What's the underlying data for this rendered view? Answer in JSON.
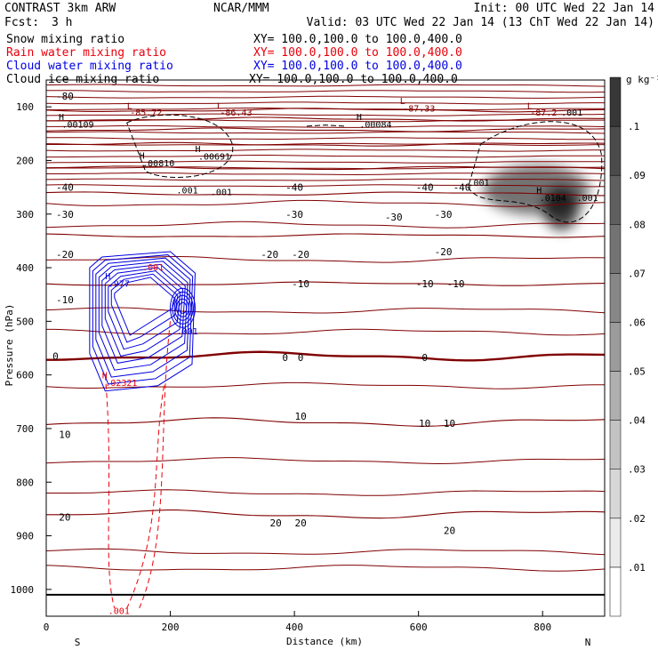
{
  "header": {
    "model": "CONTRAST  3km ARW",
    "org": "NCAR/MMM",
    "init": "Init: 00 UTC Wed 22 Jan 14",
    "fcst_label": "Fcst:",
    "fcst_value": "3 h",
    "valid": "Valid: 03 UTC Wed 22 Jan 14 (13 ChT Wed 22 Jan 14)"
  },
  "fields": [
    {
      "name": "Snow mixing ratio",
      "xy": "XY= 100.0,100.0 to 100.0,400.0",
      "color": "#000000"
    },
    {
      "name": "Rain water mixing ratio",
      "xy": "XY= 100.0,100.0 to 100.0,400.0",
      "color": "#e8000b"
    },
    {
      "name": "Cloud water mixing ratio",
      "xy": "XY= 100.0,100.0 to 100.0,400.0",
      "color": "#0000e0"
    },
    {
      "name": "Cloud ice mixing ratio",
      "xy": "XY= 100.0,100.0 to 100.0,400.0",
      "color": "#000000"
    }
  ],
  "colors": {
    "temperature": "#800000",
    "rain": "#e8000b",
    "cloud_water": "#0000e0",
    "snow": "#000000",
    "shading": "#000000"
  },
  "chart_data": {
    "type": "cross-section",
    "xlabel": "Distance (km)",
    "ylabel": "Pressure (hPa)",
    "xlim": [
      0,
      900
    ],
    "ylim_hpa": [
      1050,
      50
    ],
    "x_ticks": [
      0,
      200,
      400,
      600,
      800
    ],
    "y_ticks": [
      100,
      200,
      300,
      400,
      500,
      600,
      700,
      800,
      900,
      1000
    ],
    "endpoints": {
      "left": "S",
      "right": "N"
    },
    "surface_pressure_hpa": 1010,
    "colorbar": {
      "unit": "g kg⁻¹",
      "levels": [
        0.01,
        0.02,
        0.03,
        0.04,
        0.05,
        0.06,
        0.07,
        0.08,
        0.09,
        0.1
      ],
      "tick_labels": [
        ".01",
        ".02",
        ".03",
        ".04",
        ".05",
        ".06",
        ".07",
        ".08",
        ".09",
        ".1"
      ]
    },
    "temperature_contours_c": [
      {
        "t": -80,
        "p": 106
      },
      {
        "t": -70,
        "p": 123
      },
      {
        "t": -60,
        "p": 143
      },
      {
        "t": -50,
        "p": 170
      },
      {
        "t": -40,
        "p": 214
      },
      {
        "t": -30,
        "p": 262
      },
      {
        "t": -20,
        "p": 340
      },
      {
        "t": -10,
        "p": 430
      },
      {
        "t": 0,
        "p": 565
      },
      {
        "t": 10,
        "p": 688
      },
      {
        "t": 20,
        "p": 860
      }
    ],
    "temperature_labels": [
      {
        "text": "-80",
        "x": 30,
        "p": 80
      },
      {
        "text": "-40",
        "x": 30,
        "p": 250
      },
      {
        "text": "-40",
        "x": 400,
        "p": 250
      },
      {
        "text": "-40",
        "x": 610,
        "p": 250
      },
      {
        "text": "-40",
        "x": 670,
        "p": 250
      },
      {
        "text": "-30",
        "x": 30,
        "p": 300
      },
      {
        "text": "-30",
        "x": 400,
        "p": 300
      },
      {
        "text": "-30",
        "x": 560,
        "p": 305
      },
      {
        "text": "-30",
        "x": 640,
        "p": 300
      },
      {
        "text": "-20",
        "x": 30,
        "p": 375
      },
      {
        "text": "-20",
        "x": 360,
        "p": 375
      },
      {
        "text": "-20",
        "x": 410,
        "p": 375
      },
      {
        "text": "-20",
        "x": 640,
        "p": 370
      },
      {
        "text": "-10",
        "x": 30,
        "p": 460
      },
      {
        "text": "-10",
        "x": 410,
        "p": 430
      },
      {
        "text": "-10",
        "x": 610,
        "p": 430
      },
      {
        "text": "-10",
        "x": 660,
        "p": 430
      },
      {
        "text": "0",
        "x": 15,
        "p": 565
      },
      {
        "text": "0",
        "x": 385,
        "p": 567
      },
      {
        "text": "0",
        "x": 410,
        "p": 567
      },
      {
        "text": "0",
        "x": 610,
        "p": 567
      },
      {
        "text": "10",
        "x": 30,
        "p": 711
      },
      {
        "text": "10",
        "x": 410,
        "p": 677
      },
      {
        "text": "10",
        "x": 610,
        "p": 690
      },
      {
        "text": "10",
        "x": 650,
        "p": 690
      },
      {
        "text": "20",
        "x": 30,
        "p": 865
      },
      {
        "text": "20",
        "x": 370,
        "p": 876
      },
      {
        "text": "20",
        "x": 410,
        "p": 876
      },
      {
        "text": "20",
        "x": 650,
        "p": 890
      }
    ],
    "extrema_labels": [
      {
        "text": "L",
        "x": 130,
        "p": 97,
        "color": "#800000"
      },
      {
        "text": "-85.72",
        "x": 135,
        "p": 110,
        "color": "#800000"
      },
      {
        "text": "L",
        "x": 275,
        "p": 97,
        "color": "#800000"
      },
      {
        "text": "-86.43",
        "x": 280,
        "p": 110,
        "color": "#800000"
      },
      {
        "text": "L",
        "x": 570,
        "p": 88,
        "color": "#800000"
      },
      {
        "text": "-87.33",
        "x": 575,
        "p": 102,
        "color": "#800000"
      },
      {
        "text": "L",
        "x": 775,
        "p": 97,
        "color": "#800000"
      },
      {
        "text": "-87.2",
        "x": 780,
        "p": 110,
        "color": "#800000"
      },
      {
        "text": ".001",
        "x": 830,
        "p": 110,
        "color": "#000000"
      },
      {
        "text": "H",
        "x": 20,
        "p": 118,
        "color": "#000000"
      },
      {
        "text": ".00109",
        "x": 25,
        "p": 132,
        "color": "#000000"
      },
      {
        "text": "H",
        "x": 500,
        "p": 118,
        "color": "#000000"
      },
      {
        "text": ".00084",
        "x": 505,
        "p": 132,
        "color": "#000000"
      },
      {
        "text": "H",
        "x": 150,
        "p": 190,
        "color": "#000000"
      },
      {
        "text": ".00810",
        "x": 155,
        "p": 204,
        "color": "#000000"
      },
      {
        "text": "H",
        "x": 240,
        "p": 178,
        "color": "#000000"
      },
      {
        "text": ".00691",
        "x": 245,
        "p": 192,
        "color": "#000000"
      },
      {
        "text": ".001",
        "x": 210,
        "p": 255,
        "color": "#000000"
      },
      {
        "text": ".001",
        "x": 265,
        "p": 258,
        "color": "#000000"
      },
      {
        "text": ".001",
        "x": 680,
        "p": 241,
        "color": "#000000"
      },
      {
        "text": "H",
        "x": 790,
        "p": 255,
        "color": "#000000"
      },
      {
        "text": ".0104",
        "x": 795,
        "p": 269,
        "color": "#000000"
      },
      {
        "text": ".001",
        "x": 855,
        "p": 269,
        "color": "#000000"
      },
      {
        "text": "H",
        "x": 95,
        "p": 415,
        "color": "#0000e0"
      },
      {
        "text": ".977",
        "x": 100,
        "p": 429,
        "color": "#0000e0"
      },
      {
        "text": ".001",
        "x": 155,
        "p": 398,
        "color": "#e8000b"
      },
      {
        "text": ".001",
        "x": 210,
        "p": 518,
        "color": "#0000e0"
      },
      {
        "text": "H",
        "x": 90,
        "p": 600,
        "color": "#e8000b"
      },
      {
        "text": ".02321",
        "x": 95,
        "p": 614,
        "color": "#e8000b"
      },
      {
        "text": ".001",
        "x": 100,
        "p": 1039,
        "color": "#e8000b"
      }
    ]
  }
}
